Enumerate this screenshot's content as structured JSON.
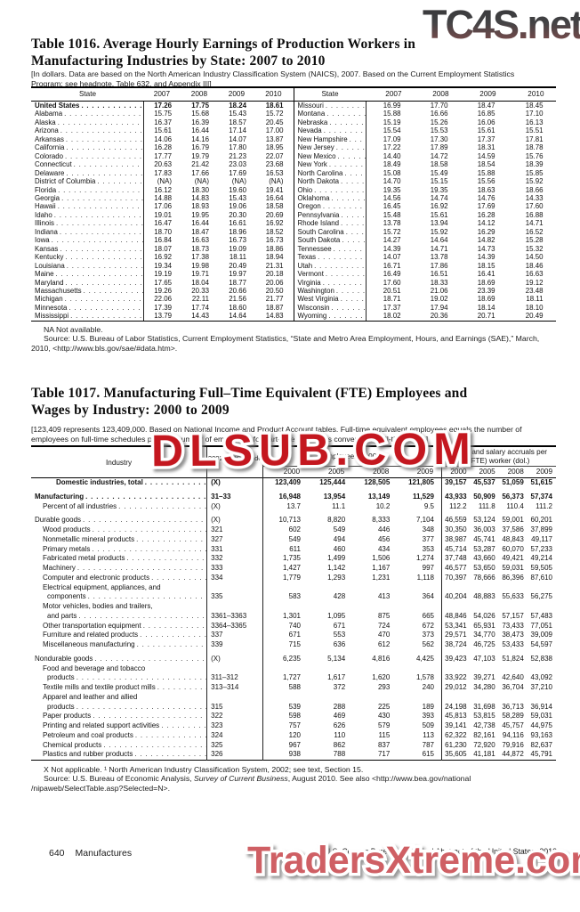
{
  "watermarks": {
    "top_right": "TC4S.net",
    "middle": "DLSUB.COM",
    "bottom": "TradersXtreme.com",
    "red": "#c4171f",
    "pink_red": "#cf5f64",
    "dark_gradient_top": "#39393b",
    "dark_gradient_bottom": "#7e4c4c"
  },
  "table1016": {
    "title_line1": "Table 1016. Average Hourly Earnings of Production Workers in",
    "title_line2": "Manufacturing Industries by State: 2007 to 2010",
    "headnote": "[In dollars. Data are based on the North American Industry Classification System (NAICS), 2007. Based on the Current Employment Statistics Program; see headnote, Table 632, and Appendix III]",
    "state_header": "State",
    "years": [
      "2007",
      "2008",
      "2009",
      "2010"
    ],
    "left_rows": [
      {
        "state": "United States",
        "bold": true,
        "v": [
          "17.26",
          "17.75",
          "18.24",
          "18.61"
        ]
      },
      {
        "state": "Alabama",
        "v": [
          "15.75",
          "15.68",
          "15.43",
          "15.72"
        ]
      },
      {
        "state": "Alaska",
        "v": [
          "16.37",
          "16.39",
          "18.57",
          "20.45"
        ]
      },
      {
        "state": "Arizona",
        "v": [
          "15.61",
          "16.44",
          "17.14",
          "17.00"
        ]
      },
      {
        "state": "Arkansas",
        "v": [
          "14.06",
          "14.16",
          "14.07",
          "13.87"
        ]
      },
      {
        "state": "California",
        "v": [
          "16.28",
          "16.79",
          "17.80",
          "18.95"
        ]
      },
      {
        "state": "Colorado",
        "v": [
          "17.77",
          "19.79",
          "21.23",
          "22.07"
        ]
      },
      {
        "state": "Connecticut",
        "v": [
          "20.63",
          "21.42",
          "23.03",
          "23.68"
        ]
      },
      {
        "state": "Delaware",
        "v": [
          "17.83",
          "17.66",
          "17.69",
          "16.53"
        ]
      },
      {
        "state": "District of Columbia",
        "v": [
          "(NA)",
          "(NA)",
          "(NA)",
          "(NA)"
        ]
      },
      {
        "state": "Florida",
        "v": [
          "16.12",
          "18.30",
          "19.60",
          "19.41"
        ]
      },
      {
        "state": "Georgia",
        "v": [
          "14.88",
          "14.83",
          "15.43",
          "16.64"
        ]
      },
      {
        "state": "Hawaii",
        "v": [
          "17.06",
          "18.93",
          "19.06",
          "18.58"
        ]
      },
      {
        "state": "Idaho",
        "v": [
          "19.01",
          "19.95",
          "20.30",
          "20.69"
        ]
      },
      {
        "state": "Illinois",
        "v": [
          "16.47",
          "16.44",
          "16.61",
          "16.92"
        ]
      },
      {
        "state": "Indiana",
        "v": [
          "18.70",
          "18.47",
          "18.96",
          "18.52"
        ]
      },
      {
        "state": "Iowa",
        "v": [
          "16.84",
          "16.63",
          "16.73",
          "16.73"
        ]
      },
      {
        "state": "Kansas",
        "v": [
          "18.07",
          "18.73",
          "19.09",
          "18.86"
        ]
      },
      {
        "state": "Kentucky",
        "v": [
          "16.92",
          "17.38",
          "18.11",
          "18.94"
        ]
      },
      {
        "state": "Louisiana",
        "v": [
          "19.34",
          "19.98",
          "20.49",
          "21.31"
        ]
      },
      {
        "state": "Maine",
        "v": [
          "19.19",
          "19.71",
          "19.97",
          "20.18"
        ]
      },
      {
        "state": "Maryland",
        "v": [
          "17.65",
          "18.04",
          "18.77",
          "20.06"
        ]
      },
      {
        "state": "Massachusetts",
        "v": [
          "19.26",
          "20.33",
          "20.66",
          "20.50"
        ]
      },
      {
        "state": "Michigan",
        "v": [
          "22.06",
          "22.11",
          "21.56",
          "21.77"
        ]
      },
      {
        "state": "Minnesota",
        "v": [
          "17.39",
          "17.74",
          "18.60",
          "18.87"
        ]
      },
      {
        "state": "Mississippi",
        "v": [
          "13.79",
          "14.43",
          "14.64",
          "14.83"
        ]
      }
    ],
    "right_rows": [
      {
        "state": "Missouri",
        "v": [
          "16.99",
          "17.70",
          "18.47",
          "18.45"
        ]
      },
      {
        "state": "Montana",
        "v": [
          "15.88",
          "16.66",
          "16.85",
          "17.10"
        ]
      },
      {
        "state": "Nebraska",
        "v": [
          "15.19",
          "15.26",
          "16.06",
          "16.13"
        ]
      },
      {
        "state": "Nevada",
        "v": [
          "15.54",
          "15.53",
          "15.61",
          "15.51"
        ]
      },
      {
        "state": "New Hampshire",
        "v": [
          "17.09",
          "17.30",
          "17.37",
          "17.81"
        ]
      },
      {
        "state": "New Jersey",
        "v": [
          "17.22",
          "17.89",
          "18.31",
          "18.78"
        ]
      },
      {
        "state": "New Mexico",
        "v": [
          "14.40",
          "14.72",
          "14.59",
          "15.76"
        ]
      },
      {
        "state": "New York",
        "v": [
          "18.49",
          "18.58",
          "18.54",
          "18.39"
        ]
      },
      {
        "state": "North Carolina",
        "v": [
          "15.08",
          "15.49",
          "15.88",
          "15.85"
        ]
      },
      {
        "state": "North Dakota",
        "v": [
          "14.70",
          "15.15",
          "15.56",
          "15.92"
        ]
      },
      {
        "state": "Ohio",
        "v": [
          "19.35",
          "19.35",
          "18.63",
          "18.66"
        ]
      },
      {
        "state": "Oklahoma",
        "v": [
          "14.56",
          "14.74",
          "14.76",
          "14.33"
        ]
      },
      {
        "state": "Oregon",
        "v": [
          "16.45",
          "16.92",
          "17.69",
          "17.60"
        ]
      },
      {
        "state": "Pennsylvania",
        "v": [
          "15.48",
          "15.61",
          "16.28",
          "16.88"
        ]
      },
      {
        "state": "Rhode Island",
        "v": [
          "13.78",
          "13.94",
          "14.12",
          "14.71"
        ]
      },
      {
        "state": "South Carolina",
        "v": [
          "15.72",
          "15.92",
          "16.29",
          "16.52"
        ]
      },
      {
        "state": "South Dakota",
        "v": [
          "14.27",
          "14.64",
          "14.82",
          "15.28"
        ]
      },
      {
        "state": "Tennessee",
        "v": [
          "14.39",
          "14.71",
          "14.73",
          "15.32"
        ]
      },
      {
        "state": "Texas",
        "v": [
          "14.07",
          "13.78",
          "14.39",
          "14.50"
        ]
      },
      {
        "state": "Utah",
        "v": [
          "16.71",
          "17.86",
          "18.15",
          "18.46"
        ]
      },
      {
        "state": "Vermont",
        "v": [
          "16.49",
          "16.51",
          "16.41",
          "16.63"
        ]
      },
      {
        "state": "Virginia",
        "v": [
          "17.60",
          "18.33",
          "18.69",
          "19.12"
        ]
      },
      {
        "state": "Washington",
        "v": [
          "20.51",
          "21.06",
          "23.39",
          "23.48"
        ]
      },
      {
        "state": "West Virginia",
        "v": [
          "18.71",
          "19.02",
          "18.69",
          "18.11"
        ]
      },
      {
        "state": "Wisconsin",
        "v": [
          "17.37",
          "17.94",
          "18.14",
          "18.10"
        ]
      },
      {
        "state": "Wyoming",
        "v": [
          "18.02",
          "20.36",
          "20.71",
          "20.49"
        ]
      }
    ],
    "na_note": "NA Not available.",
    "source": "Source: U.S. Bureau of Labor Statistics, Current Employment Statistics, “State and Metro Area Employment, Hours, and Earnings (SAE),” March, 2010, <http://www.bls.gov/sae/#data.htm>."
  },
  "table1017": {
    "title_line1": "Table 1017. Manufacturing Full–Time Equivalent (FTE) Employees and",
    "title_line2": "Wages by Industry: 2000 to 2009",
    "headnote": "[123,409 represents 123,409,000. Based on National Income and Product Account tables. Full-time equivalent employees equals the number of employees on full-time schedules plus the number of employees for part-time schedules converted to full-time basis]",
    "industry_header": "Industry",
    "naics_header": "2002 NAICS code ¹",
    "employees_header": "Employees (1,000)",
    "wage_header": "Wage and salary accruals per (FTE) worker (dol.)",
    "years": [
      "2000",
      "2005",
      "2008",
      "2009"
    ],
    "rows": [
      {
        "label": "Domestic industries, total",
        "naics": "(X)",
        "bold": true,
        "indent": 2,
        "v": [
          "123,409",
          "125,444",
          "128,505",
          "121,805",
          "39,157",
          "45,537",
          "51,059",
          "51,615"
        ]
      },
      {
        "label": "Manufacturing",
        "naics": "31–33",
        "bold": true,
        "indent": 0,
        "gap": true,
        "v": [
          "16,948",
          "13,954",
          "13,149",
          "11,529",
          "43,933",
          "50,909",
          "56,373",
          "57,374"
        ]
      },
      {
        "label": "Percent of all industries",
        "naics": "(X)",
        "indent": 1,
        "v": [
          "13.7",
          "11.1",
          "10.2",
          "9.5",
          "112.2",
          "111.8",
          "110.4",
          "111.2"
        ]
      },
      {
        "label": "Durable goods",
        "naics": "(X)",
        "indent": 0,
        "gap": true,
        "v": [
          "10,713",
          "8,820",
          "8,333",
          "7,104",
          "46,559",
          "53,124",
          "59,001",
          "60,201"
        ]
      },
      {
        "label": "Wood products",
        "naics": "321",
        "indent": 1,
        "v": [
          "602",
          "549",
          "446",
          "348",
          "30,350",
          "36,003",
          "37,586",
          "37,899"
        ]
      },
      {
        "label": "Nonmetallic mineral products",
        "naics": "327",
        "indent": 1,
        "v": [
          "549",
          "494",
          "456",
          "377",
          "38,987",
          "45,741",
          "48,843",
          "49,117"
        ]
      },
      {
        "label": "Primary metals",
        "naics": "331",
        "indent": 1,
        "v": [
          "611",
          "460",
          "434",
          "353",
          "45,714",
          "53,287",
          "60,070",
          "57,233"
        ]
      },
      {
        "label": "Fabricated metal products",
        "naics": "332",
        "indent": 1,
        "v": [
          "1,735",
          "1,499",
          "1,506",
          "1,274",
          "37,748",
          "43,660",
          "49,421",
          "49,214"
        ]
      },
      {
        "label": "Machinery",
        "naics": "333",
        "indent": 1,
        "v": [
          "1,427",
          "1,142",
          "1,167",
          "997",
          "46,577",
          "53,650",
          "59,031",
          "59,505"
        ]
      },
      {
        "label": "Computer and electronic products",
        "naics": "334",
        "indent": 1,
        "v": [
          "1,779",
          "1,293",
          "1,231",
          "1,118",
          "70,397",
          "78,666",
          "86,396",
          "87,610"
        ]
      },
      {
        "label": "Electrical equipment, appliances, and",
        "label2": "components",
        "naics": "335",
        "indent": 1,
        "v": [
          "583",
          "428",
          "413",
          "364",
          "40,204",
          "48,883",
          "55,633",
          "56,275"
        ]
      },
      {
        "label": "Motor vehicles, bodies and trailers,",
        "label2": "and parts",
        "naics": "3361–3363",
        "indent": 1,
        "v": [
          "1,301",
          "1,095",
          "875",
          "665",
          "48,846",
          "54,026",
          "57,157",
          "57,483"
        ]
      },
      {
        "label": "Other transportation equipment",
        "naics": "3364–3365",
        "indent": 1,
        "v": [
          "740",
          "671",
          "724",
          "672",
          "53,341",
          "65,931",
          "73,433",
          "77,051"
        ]
      },
      {
        "label": "Furniture and related products",
        "naics": "337",
        "indent": 1,
        "v": [
          "671",
          "553",
          "470",
          "373",
          "29,571",
          "34,770",
          "38,473",
          "39,009"
        ]
      },
      {
        "label": "Miscellaneous manufacturing",
        "naics": "339",
        "indent": 1,
        "v": [
          "715",
          "636",
          "612",
          "562",
          "38,724",
          "46,725",
          "53,433",
          "54,597"
        ]
      },
      {
        "label": "Nondurable goods",
        "naics": "(X)",
        "indent": 0,
        "gap": true,
        "v": [
          "6,235",
          "5,134",
          "4,816",
          "4,425",
          "39,423",
          "47,103",
          "51,824",
          "52,838"
        ]
      },
      {
        "label": "Food and beverage and tobacco",
        "label2": "products",
        "naics": "311–312",
        "indent": 1,
        "v": [
          "1,727",
          "1,617",
          "1,620",
          "1,578",
          "33,922",
          "39,271",
          "42,640",
          "43,092"
        ]
      },
      {
        "label": "Textile mills and textile product mills",
        "naics": "313–314",
        "indent": 1,
        "v": [
          "588",
          "372",
          "293",
          "240",
          "29,012",
          "34,280",
          "36,704",
          "37,210"
        ]
      },
      {
        "label": "Apparel and leather and allied",
        "label2": "products",
        "naics": "315",
        "indent": 1,
        "v": [
          "539",
          "288",
          "225",
          "189",
          "24,198",
          "31,698",
          "36,713",
          "36,914"
        ]
      },
      {
        "label": "Paper products",
        "naics": "322",
        "indent": 1,
        "v": [
          "598",
          "469",
          "430",
          "393",
          "45,813",
          "53,815",
          "58,289",
          "59,031"
        ]
      },
      {
        "label": "Printing and related support activities",
        "naics": "323",
        "indent": 1,
        "v": [
          "757",
          "626",
          "579",
          "509",
          "39,141",
          "42,738",
          "45,757",
          "44,975"
        ]
      },
      {
        "label": "Petroleum and coal products",
        "naics": "324",
        "indent": 1,
        "v": [
          "120",
          "110",
          "115",
          "113",
          "62,322",
          "82,161",
          "94,116",
          "93,163"
        ]
      },
      {
        "label": "Chemical products",
        "naics": "325",
        "indent": 1,
        "v": [
          "967",
          "862",
          "837",
          "787",
          "61,230",
          "72,920",
          "79,916",
          "82,637"
        ]
      },
      {
        "label": "Plastics and rubber products",
        "naics": "326",
        "indent": 1,
        "v": [
          "938",
          "788",
          "717",
          "615",
          "35,605",
          "41,181",
          "44,872",
          "45,791"
        ]
      }
    ],
    "footnote": "X Not applicable. ¹ North American Industry Classification System, 2002; see text, Section 15.",
    "source_prefix": "Source: U.S. Bureau of Economic Analysis, ",
    "source_italic": "Survey of Current Business",
    "source_suffix": ", August 2010. See also <http://www.bea.gov/national /nipaweb/SelectTable.asp?Selected=N>."
  },
  "footer": {
    "page_number": "640",
    "section": "Manufactures",
    "credit": "U.S. Census Bureau, Statistical Abstract of the United States: 2012"
  }
}
